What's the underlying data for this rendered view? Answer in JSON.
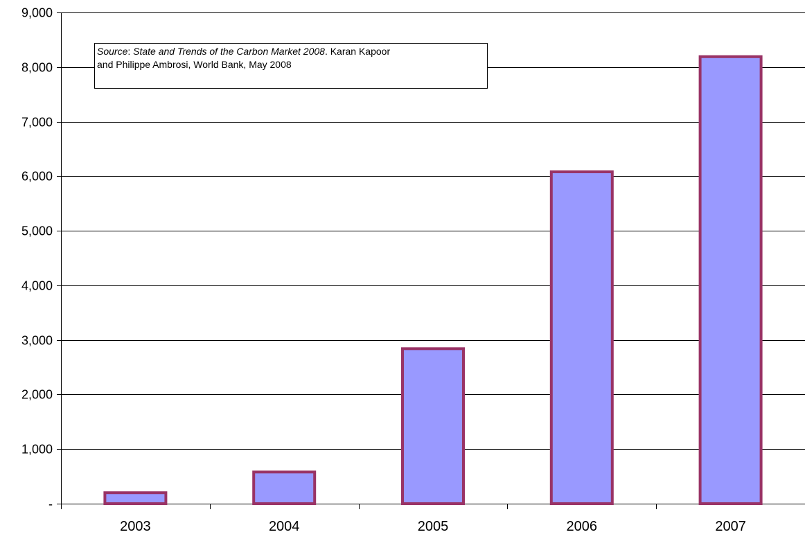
{
  "chart_data": {
    "type": "bar",
    "categories": [
      "2003",
      "2004",
      "2005",
      "2006",
      "2007"
    ],
    "values": [
      200,
      580,
      2840,
      6080,
      8190
    ],
    "ylim": [
      0,
      9000
    ],
    "yticks": [
      0,
      1000,
      2000,
      3000,
      4000,
      5000,
      6000,
      7000,
      8000,
      9000
    ],
    "ytick_labels": [
      "-",
      "1,000",
      "2,000",
      "3,000",
      "4,000",
      "5,000",
      "6,000",
      "7,000",
      "8,000",
      "9,000"
    ],
    "title": "",
    "xlabel": "",
    "ylabel": "",
    "grid": "horizontal",
    "legend": "none",
    "colors": {
      "bar_fill": "#9999ff",
      "bar_stroke": "#993366",
      "grid": "#000000"
    }
  },
  "annotation": {
    "source_label": "Source",
    "source_separator": ": ",
    "report_title": "State and Trends of the Carbon Market 2008",
    "report_separator": ". ",
    "authors_line1": "Karan Kapoor",
    "authors_line2": "and Philippe Ambrosi, World Bank, May 2008"
  }
}
